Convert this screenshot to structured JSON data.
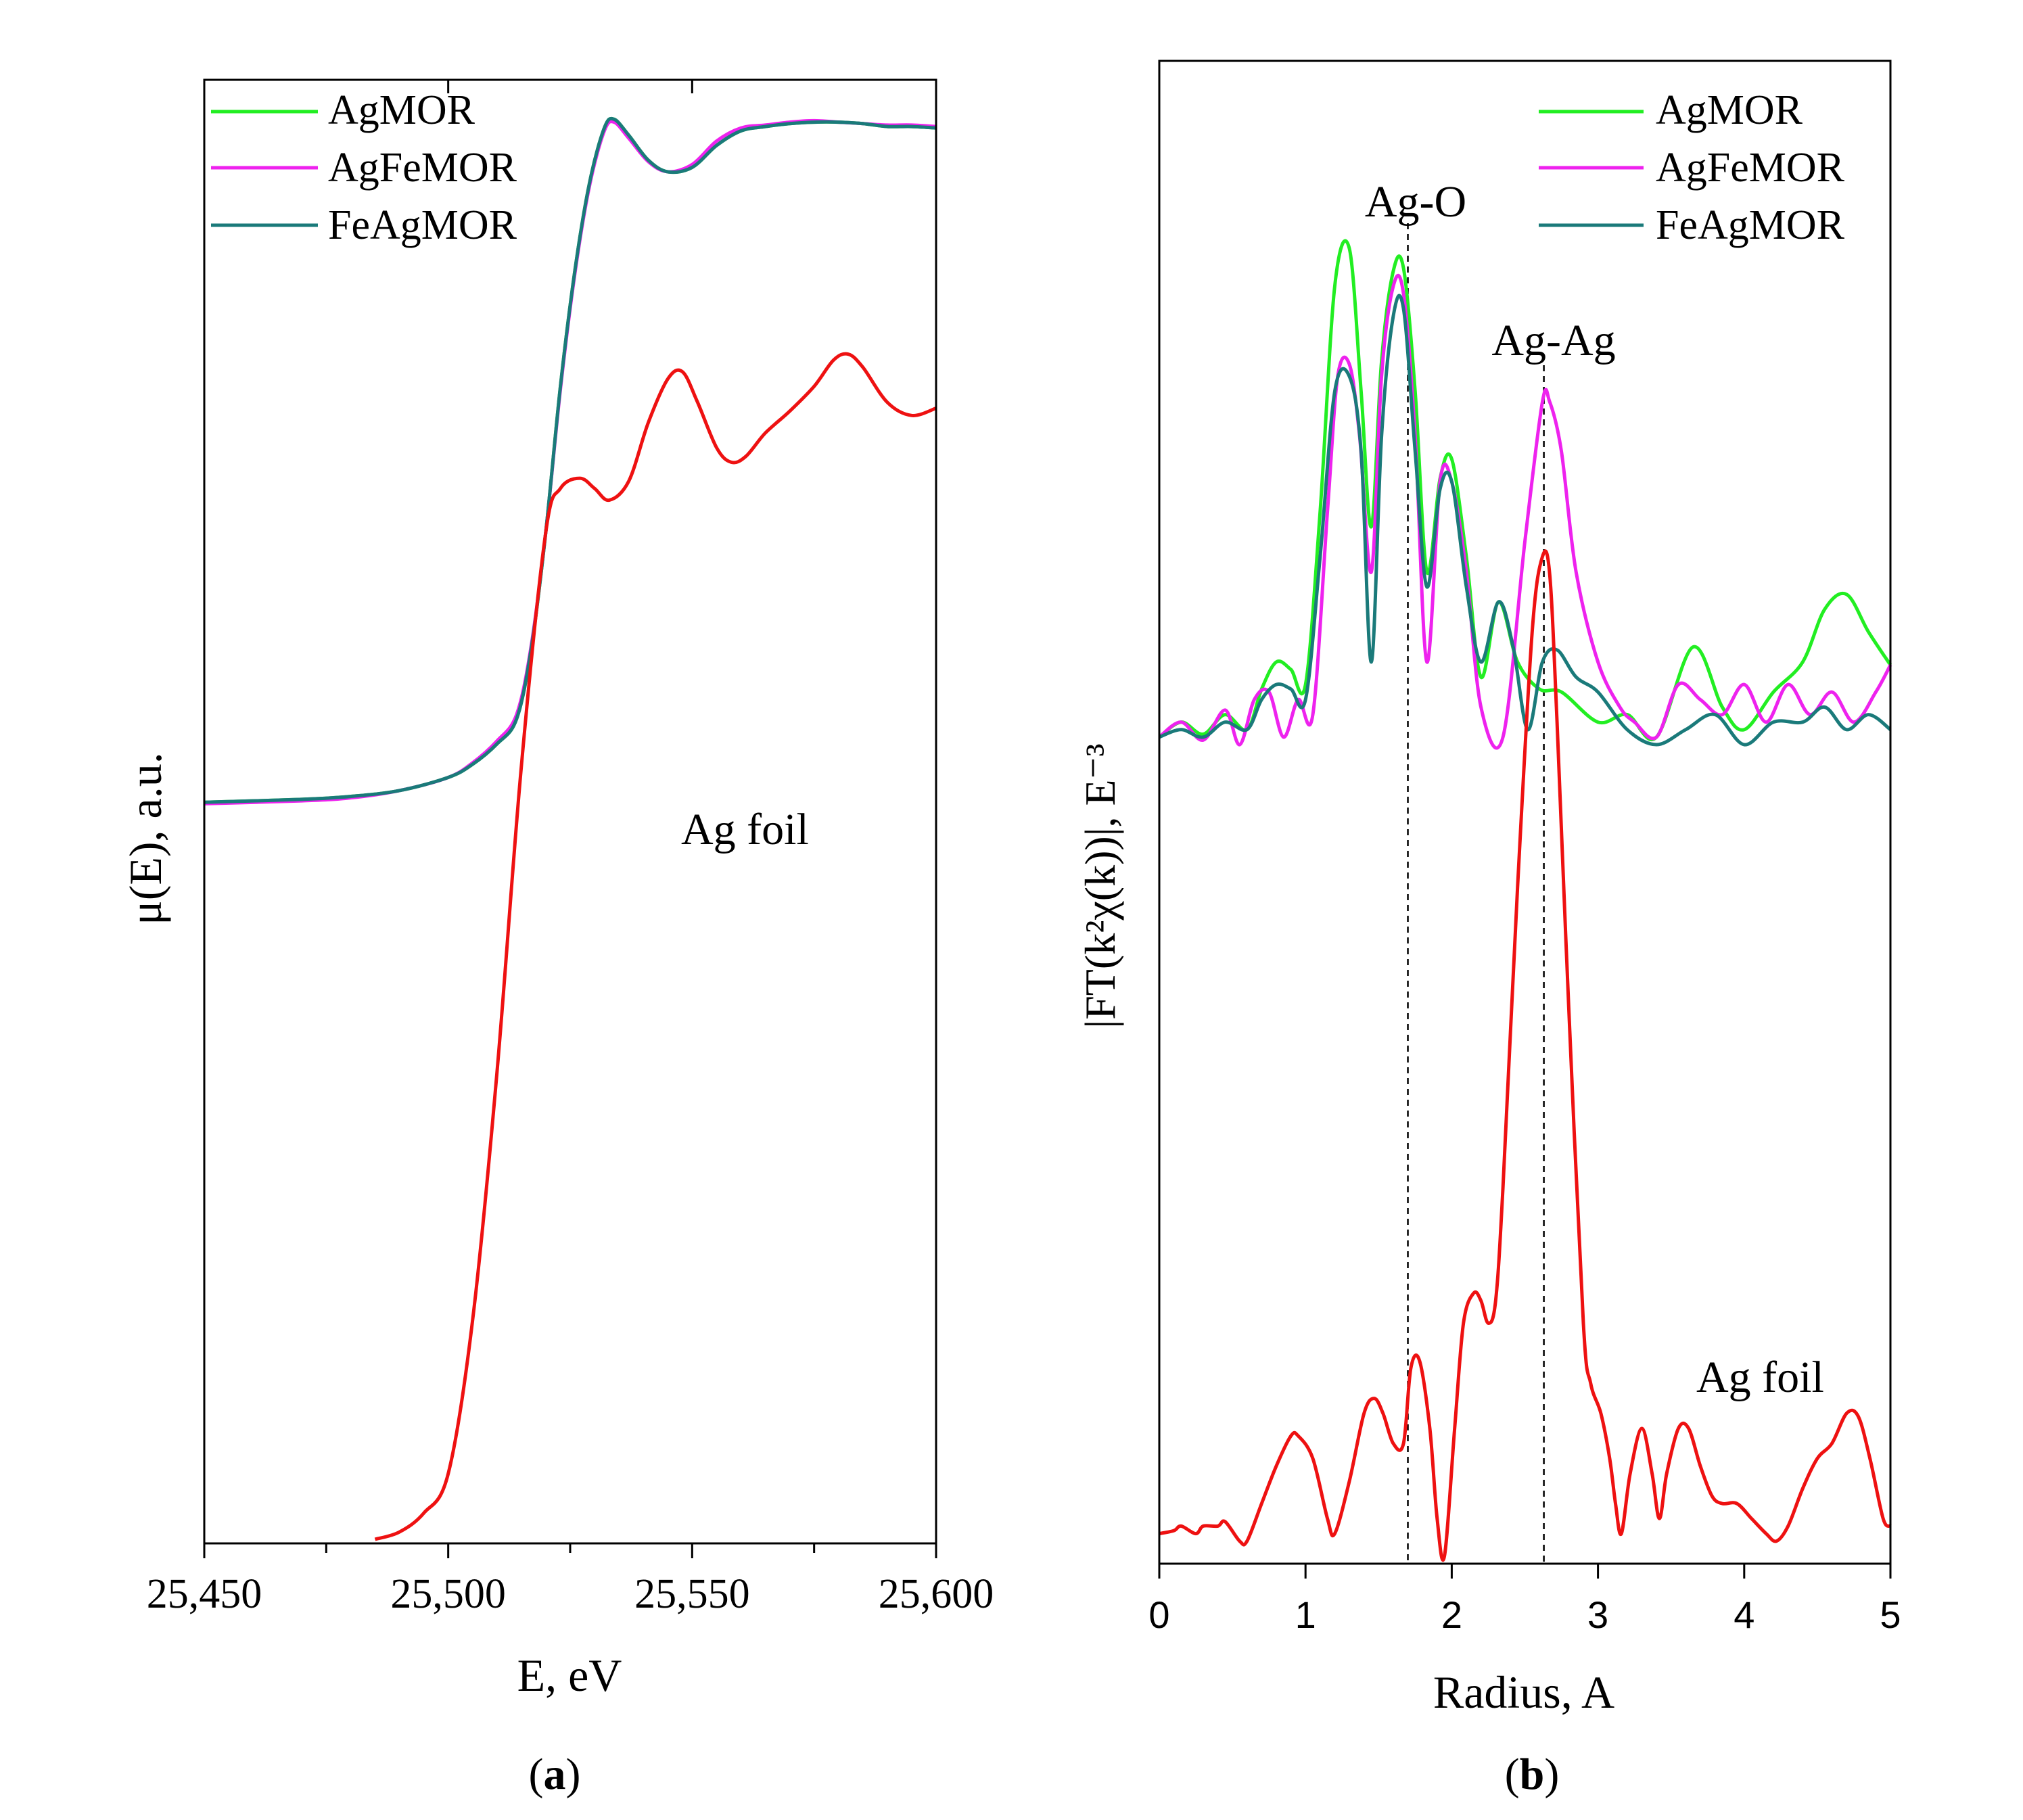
{
  "chart_data": [
    {
      "panel": "a",
      "type": "line",
      "caption_open": "(",
      "caption_letter": "a",
      "caption_close": ")",
      "title": "",
      "xlabel": "E, eV",
      "ylabel": "μ(E), a.u.",
      "xlim": [
        25450,
        25600
      ],
      "ylim": [
        0,
        1
      ],
      "x_ticks": [
        25450,
        25500,
        25550,
        25600
      ],
      "x_tick_labels": [
        "25,450",
        "25,500",
        "25,550",
        "25,600"
      ],
      "legend": [
        "AgMOR",
        "AgFeMOR",
        "FeAgMOR"
      ],
      "legend_position": "top-left",
      "annotations": [
        {
          "text": "Ag foil",
          "x": 25563,
          "y": 0.52
        }
      ],
      "series": [
        {
          "name": "AgMOR",
          "color": "#22ee22",
          "x": [
            25450,
            25470,
            25480,
            25490,
            25500,
            25505,
            25510,
            25514,
            25517,
            25520,
            25523,
            25526,
            25529,
            25532,
            25534,
            25537,
            25541,
            25545,
            25550,
            25555,
            25560,
            25565,
            25570,
            25575,
            25580,
            25585,
            25590,
            25595,
            25600
          ],
          "y": [
            0.505,
            0.507,
            0.509,
            0.513,
            0.522,
            0.531,
            0.545,
            0.562,
            0.61,
            0.69,
            0.79,
            0.87,
            0.93,
            0.967,
            0.973,
            0.962,
            0.945,
            0.937,
            0.94,
            0.955,
            0.965,
            0.968,
            0.97,
            0.971,
            0.971,
            0.97,
            0.968,
            0.968,
            0.967
          ]
        },
        {
          "name": "AgFeMOR",
          "color": "#ee22ee",
          "x": [
            25450,
            25470,
            25480,
            25490,
            25500,
            25505,
            25510,
            25514,
            25517,
            25520,
            25523,
            25526,
            25529,
            25532,
            25534,
            25537,
            25541,
            25545,
            25550,
            25555,
            25560,
            25565,
            25570,
            25575,
            25580,
            25585,
            25590,
            25595,
            25600
          ],
          "y": [
            0.504,
            0.506,
            0.508,
            0.513,
            0.522,
            0.532,
            0.547,
            0.565,
            0.612,
            0.69,
            0.788,
            0.868,
            0.928,
            0.965,
            0.971,
            0.96,
            0.944,
            0.937,
            0.942,
            0.958,
            0.967,
            0.969,
            0.971,
            0.972,
            0.971,
            0.97,
            0.969,
            0.969,
            0.968
          ]
        },
        {
          "name": "FeAgMOR",
          "color": "#1a7a7a",
          "x": [
            25450,
            25470,
            25480,
            25490,
            25500,
            25505,
            25510,
            25514,
            25517,
            25520,
            25523,
            25526,
            25529,
            25532,
            25534,
            25537,
            25541,
            25545,
            25550,
            25555,
            25560,
            25565,
            25570,
            25575,
            25580,
            25585,
            25590,
            25595,
            25600
          ],
          "y": [
            0.505,
            0.507,
            0.509,
            0.513,
            0.522,
            0.531,
            0.545,
            0.562,
            0.61,
            0.69,
            0.79,
            0.87,
            0.93,
            0.967,
            0.973,
            0.962,
            0.945,
            0.937,
            0.94,
            0.955,
            0.965,
            0.968,
            0.97,
            0.971,
            0.971,
            0.97,
            0.968,
            0.968,
            0.967
          ]
        },
        {
          "name": "Ag foil",
          "color": "#ee1111",
          "x": [
            25485,
            25490,
            25495,
            25500,
            25505,
            25510,
            25515,
            25520,
            25523,
            25527,
            25530,
            25533,
            25537,
            25541,
            25545,
            25548,
            25551,
            25555,
            25558,
            25561,
            25565,
            25570,
            25575,
            25579,
            25582,
            25585,
            25590,
            25595,
            25600
          ],
          "y": [
            0.0,
            0.005,
            0.018,
            0.045,
            0.15,
            0.32,
            0.53,
            0.69,
            0.72,
            0.727,
            0.72,
            0.712,
            0.725,
            0.765,
            0.795,
            0.8,
            0.78,
            0.748,
            0.738,
            0.742,
            0.758,
            0.773,
            0.79,
            0.808,
            0.812,
            0.803,
            0.779,
            0.77,
            0.775
          ]
        }
      ]
    },
    {
      "panel": "b",
      "type": "line",
      "caption_open": "(",
      "caption_letter": "b",
      "caption_close": ")",
      "title": "",
      "xlabel": "Radius, A",
      "ylabel": "|FT(k²χ(k))|, E⁻³",
      "xlim": [
        0,
        5
      ],
      "ylim": [
        0,
        1
      ],
      "x_ticks": [
        0,
        1,
        2,
        3,
        4,
        5
      ],
      "x_tick_labels": [
        "0",
        "1",
        "2",
        "3",
        "4",
        "5"
      ],
      "legend": [
        "AgMOR",
        "AgFeMOR",
        "FeAgMOR"
      ],
      "legend_position": "top-right",
      "annotations": [
        {
          "text": "Ag-O",
          "x": 1.78,
          "y": 0.905
        },
        {
          "text": "Ag-Ag",
          "x": 2.72,
          "y": 0.8
        }
      ],
      "reference_lines": [
        1.7,
        2.63
      ],
      "series": [
        {
          "name": "AgMOR",
          "color": "#22ee22",
          "x": [
            0,
            0.15,
            0.3,
            0.45,
            0.6,
            0.7,
            0.8,
            0.9,
            1.0,
            1.1,
            1.2,
            1.3,
            1.38,
            1.45,
            1.52,
            1.6,
            1.67,
            1.75,
            1.83,
            1.92,
            2.0,
            2.1,
            2.2,
            2.32,
            2.45,
            2.6,
            2.75,
            3.0,
            3.2,
            3.4,
            3.65,
            3.85,
            4.0,
            4.2,
            4.4,
            4.55,
            4.7,
            4.85,
            5.0
          ],
          "y": [
            0.55,
            0.56,
            0.552,
            0.565,
            0.555,
            0.582,
            0.6,
            0.595,
            0.585,
            0.7,
            0.85,
            0.875,
            0.78,
            0.69,
            0.8,
            0.86,
            0.862,
            0.78,
            0.66,
            0.722,
            0.735,
            0.67,
            0.59,
            0.64,
            0.6,
            0.582,
            0.58,
            0.56,
            0.565,
            0.55,
            0.61,
            0.57,
            0.555,
            0.58,
            0.6,
            0.635,
            0.645,
            0.62,
            0.598
          ]
        },
        {
          "name": "AgFeMOR",
          "color": "#ee22ee",
          "x": [
            0,
            0.15,
            0.3,
            0.45,
            0.55,
            0.65,
            0.75,
            0.85,
            0.95,
            1.05,
            1.15,
            1.22,
            1.3,
            1.37,
            1.45,
            1.52,
            1.6,
            1.67,
            1.75,
            1.83,
            1.92,
            2.0,
            2.1,
            2.2,
            2.35,
            2.5,
            2.62,
            2.67,
            2.75,
            2.85,
            3.0,
            3.15,
            3.25,
            3.4,
            3.55,
            3.7,
            3.85,
            4.0,
            4.15,
            4.3,
            4.45,
            4.6,
            4.75,
            4.9,
            5.0
          ],
          "y": [
            0.55,
            0.56,
            0.548,
            0.568,
            0.545,
            0.575,
            0.58,
            0.55,
            0.575,
            0.565,
            0.7,
            0.79,
            0.798,
            0.75,
            0.66,
            0.79,
            0.85,
            0.845,
            0.75,
            0.6,
            0.72,
            0.72,
            0.66,
            0.57,
            0.55,
            0.68,
            0.773,
            0.773,
            0.74,
            0.66,
            0.6,
            0.57,
            0.56,
            0.55,
            0.585,
            0.575,
            0.565,
            0.585,
            0.56,
            0.585,
            0.565,
            0.58,
            0.56,
            0.58,
            0.598
          ]
        },
        {
          "name": "FeAgMOR",
          "color": "#1a7a7a",
          "x": [
            0,
            0.15,
            0.3,
            0.45,
            0.6,
            0.7,
            0.8,
            0.9,
            1.0,
            1.1,
            1.2,
            1.3,
            1.38,
            1.45,
            1.52,
            1.6,
            1.67,
            1.75,
            1.83,
            1.92,
            2.0,
            2.1,
            2.2,
            2.32,
            2.42,
            2.52,
            2.62,
            2.72,
            2.85,
            3.0,
            3.2,
            3.4,
            3.6,
            3.8,
            4.0,
            4.2,
            4.4,
            4.55,
            4.7,
            4.85,
            5.0
          ],
          "y": [
            0.55,
            0.555,
            0.55,
            0.56,
            0.555,
            0.575,
            0.585,
            0.582,
            0.575,
            0.67,
            0.78,
            0.79,
            0.74,
            0.6,
            0.75,
            0.83,
            0.835,
            0.74,
            0.65,
            0.715,
            0.72,
            0.65,
            0.6,
            0.64,
            0.61,
            0.555,
            0.6,
            0.608,
            0.59,
            0.58,
            0.555,
            0.545,
            0.555,
            0.565,
            0.545,
            0.56,
            0.56,
            0.57,
            0.555,
            0.565,
            0.555
          ]
        },
        {
          "name": "Ag foil",
          "color": "#ee1111",
          "x": [
            0,
            0.1,
            0.15,
            0.25,
            0.3,
            0.4,
            0.45,
            0.55,
            0.6,
            0.7,
            0.8,
            0.9,
            0.95,
            1.05,
            1.15,
            1.2,
            1.3,
            1.4,
            1.47,
            1.53,
            1.6,
            1.67,
            1.72,
            1.78,
            1.85,
            1.9,
            1.95,
            2.02,
            2.08,
            2.15,
            2.2,
            2.25,
            2.3,
            2.35,
            2.45,
            2.55,
            2.62,
            2.67,
            2.72,
            2.8,
            2.9,
            2.95,
            3.02,
            3.08,
            3.12,
            3.16,
            3.22,
            3.3,
            3.37,
            3.42,
            3.47,
            3.55,
            3.62,
            3.7,
            3.78,
            3.85,
            3.95,
            4.05,
            4.15,
            4.22,
            4.3,
            4.4,
            4.5,
            4.6,
            4.7,
            4.78,
            4.86,
            4.95,
            5.0
          ],
          "y": [
            0.02,
            0.022,
            0.025,
            0.02,
            0.025,
            0.025,
            0.028,
            0.015,
            0.015,
            0.04,
            0.065,
            0.085,
            0.085,
            0.07,
            0.03,
            0.02,
            0.055,
            0.1,
            0.11,
            0.1,
            0.08,
            0.08,
            0.13,
            0.135,
            0.09,
            0.03,
            0.005,
            0.09,
            0.16,
            0.18,
            0.175,
            0.16,
            0.175,
            0.25,
            0.45,
            0.62,
            0.67,
            0.658,
            0.56,
            0.37,
            0.16,
            0.12,
            0.1,
            0.07,
            0.04,
            0.02,
            0.06,
            0.09,
            0.06,
            0.03,
            0.06,
            0.09,
            0.09,
            0.065,
            0.045,
            0.04,
            0.04,
            0.03,
            0.02,
            0.015,
            0.025,
            0.05,
            0.07,
            0.08,
            0.1,
            0.098,
            0.07,
            0.03,
            0.025
          ]
        }
      ]
    }
  ]
}
